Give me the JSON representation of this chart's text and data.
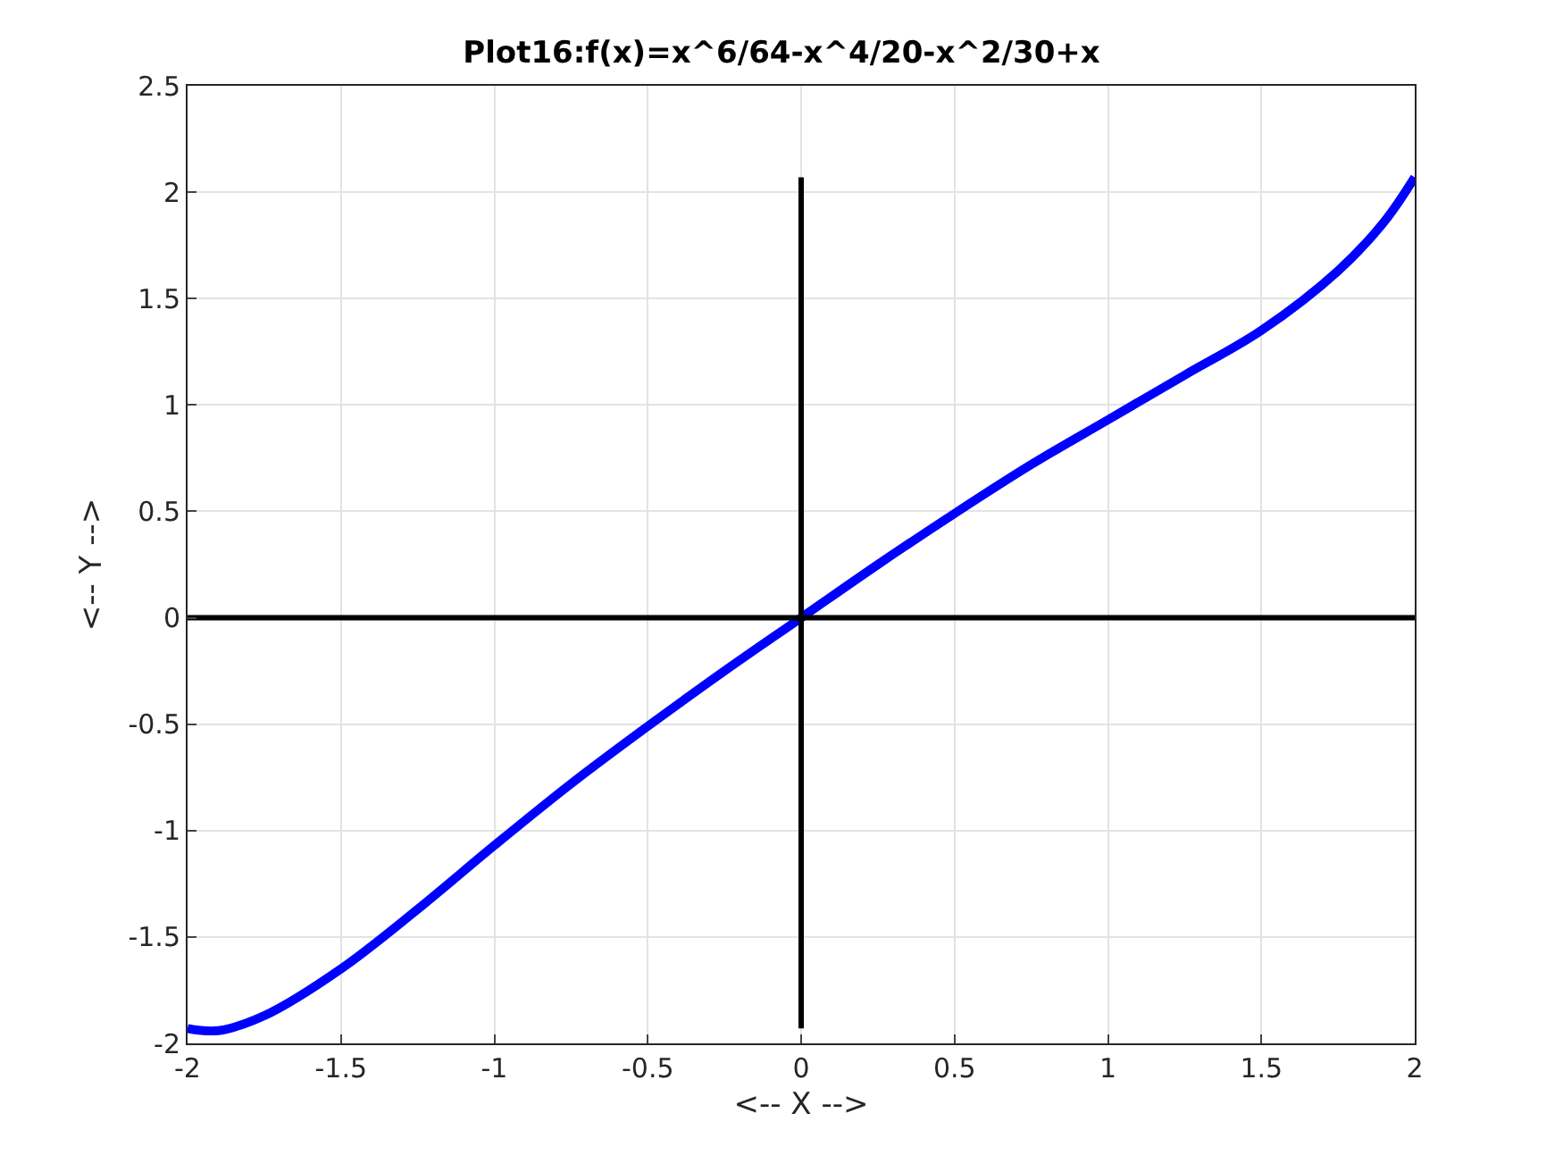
{
  "chart_data": {
    "type": "line",
    "title": "Plot16:f(x)=x^6/64-x^4/20-x^2/30+x",
    "xlabel": "<-- X -->",
    "ylabel": "<-- Y -->",
    "series": [
      {
        "color": "#0000ff",
        "x": [
          -2,
          -1.9,
          -1.75,
          -1.5,
          -1.25,
          -1,
          -0.75,
          -0.5,
          -0.25,
          0,
          0.25,
          0.5,
          0.75,
          1,
          1.25,
          1.5,
          1.75,
          1.9,
          2
        ],
        "values": [
          -1.93,
          -1.94,
          -1.87,
          -1.65,
          -1.37,
          -1.07,
          -0.78,
          -0.51,
          -0.25,
          0,
          0.25,
          0.49,
          0.72,
          0.93,
          1.14,
          1.35,
          1.63,
          1.86,
          2.07
        ]
      },
      {
        "color": "#000000",
        "x": [
          -2,
          2
        ],
        "values": [
          0,
          0
        ]
      },
      {
        "color": "#000000",
        "x": [
          0,
          0
        ],
        "values": [
          -1.93,
          2.07
        ]
      }
    ],
    "xlim": [
      -2,
      2
    ],
    "ylim": [
      -2,
      2.5
    ],
    "xticks": [
      -2,
      -1.5,
      -1,
      -0.5,
      0,
      0.5,
      1,
      1.5,
      2
    ],
    "yticks": [
      -2,
      -1.5,
      -1,
      -0.5,
      0,
      0.5,
      1,
      1.5,
      2,
      2.5
    ],
    "grid": true
  }
}
